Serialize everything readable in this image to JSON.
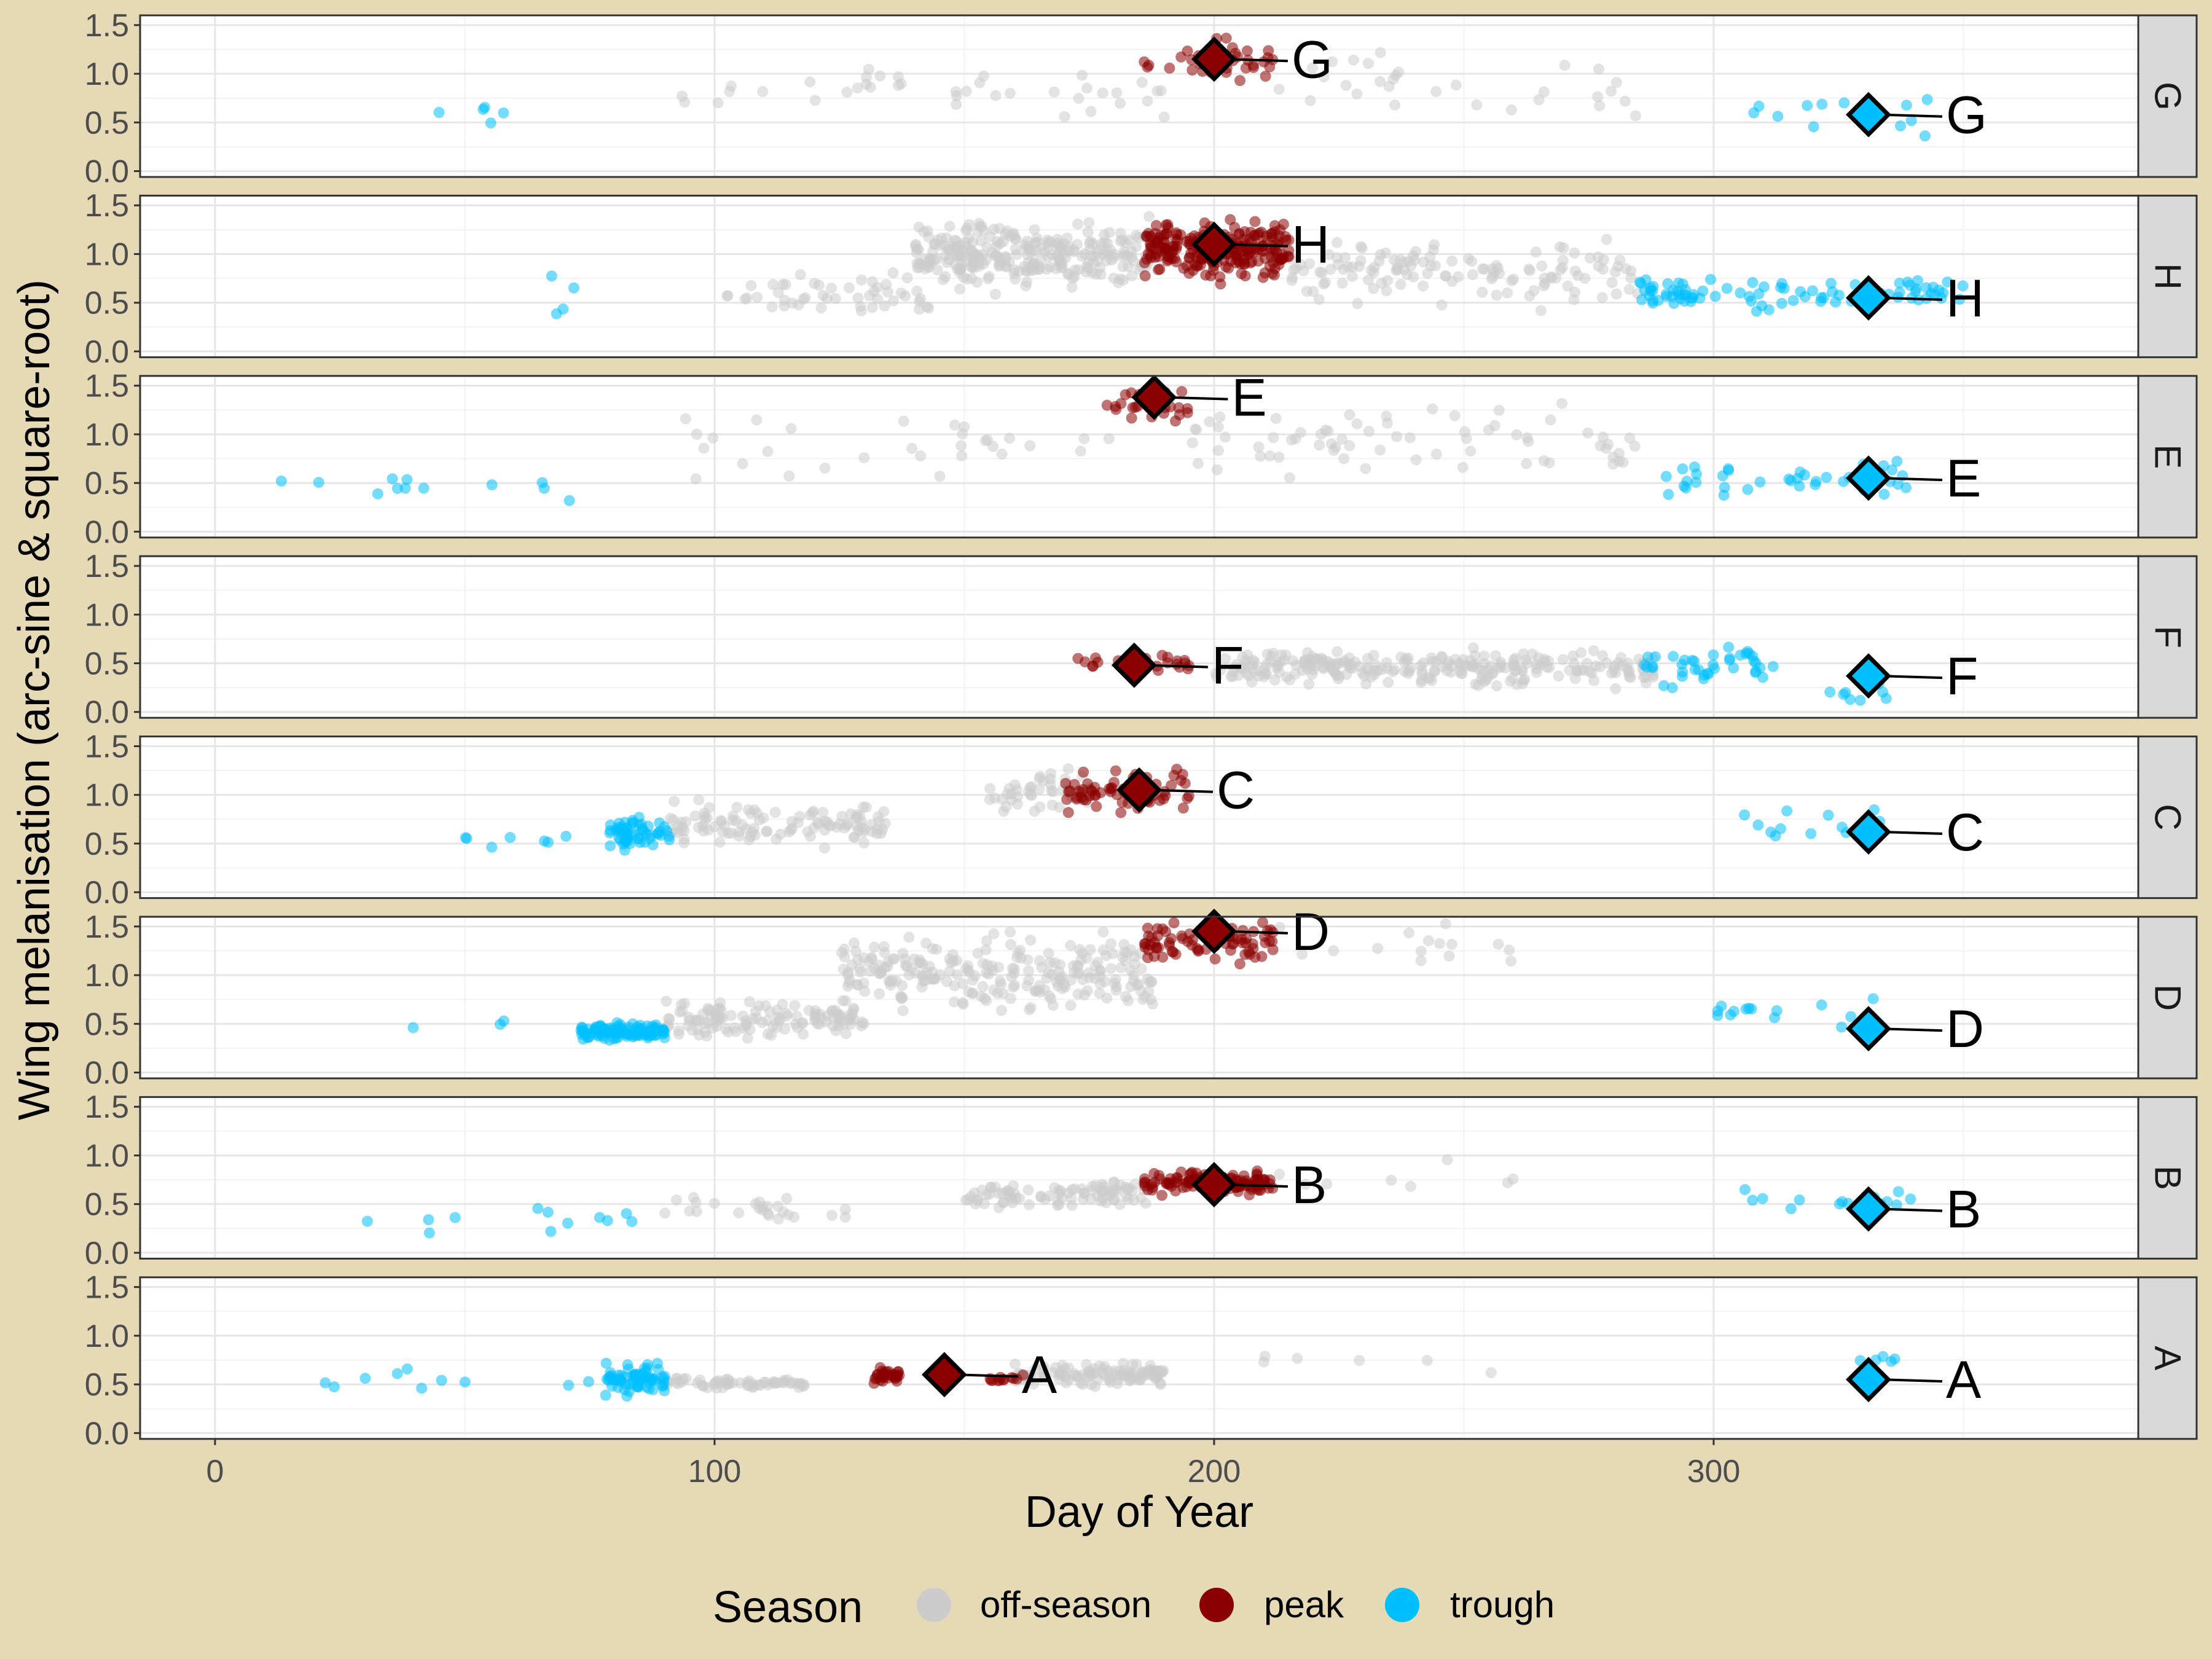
{
  "chart_data": {
    "type": "scatter",
    "title": "",
    "xlabel": "Day of Year",
    "ylabel": "Wing melanisation (arc-sine & square-root)",
    "xlim": [
      -15,
      385
    ],
    "ylim": [
      -0.06,
      1.6
    ],
    "x_ticks": [
      0,
      100,
      200,
      300
    ],
    "y_ticks": [
      0.0,
      0.5,
      1.0,
      1.5
    ],
    "y_tick_labels": [
      "0.0",
      "0.5",
      "1.0",
      "1.5"
    ],
    "legend": {
      "title": "Season",
      "position": "bottom",
      "entries": [
        {
          "label": "off-season",
          "color": "#CCCCCC"
        },
        {
          "label": "peak",
          "color": "#8B0000"
        },
        {
          "label": "trough",
          "color": "#00BFFF"
        }
      ]
    },
    "panels": [
      {
        "site": "G",
        "peak_marker": {
          "day": 200,
          "value": 1.15
        },
        "trough_marker": {
          "day": 331,
          "value": 0.58
        },
        "clusters": [
          {
            "season": "trough",
            "range": [
              35,
              90
            ],
            "level": 0.6,
            "spread": 0.25,
            "n": 5
          },
          {
            "season": "off-season",
            "range": [
              92,
              190
            ],
            "level": 0.8,
            "spread": 0.45,
            "n": 40
          },
          {
            "season": "peak",
            "range": [
              186,
              212
            ],
            "level": 1.15,
            "spread": 0.3,
            "n": 40
          },
          {
            "season": "off-season",
            "range": [
              212,
              290
            ],
            "level": 0.9,
            "spread": 0.45,
            "n": 30
          },
          {
            "season": "trough",
            "range": [
              300,
              345
            ],
            "level": 0.55,
            "spread": 0.35,
            "n": 12
          }
        ]
      },
      {
        "site": "H",
        "peak_marker": {
          "day": 200,
          "value": 1.1
        },
        "trough_marker": {
          "day": 331,
          "value": 0.55
        },
        "clusters": [
          {
            "season": "trough",
            "range": [
              65,
              75
            ],
            "level": 0.6,
            "spread": 0.4,
            "n": 4
          },
          {
            "season": "off-season",
            "range": [
              100,
              145
            ],
            "level": 0.55,
            "spread": 0.3,
            "n": 50
          },
          {
            "season": "off-season",
            "range": [
              140,
              187
            ],
            "level": 1.0,
            "spread": 0.45,
            "n": 280
          },
          {
            "season": "peak",
            "range": [
              186,
              215
            ],
            "level": 1.05,
            "spread": 0.4,
            "n": 230
          },
          {
            "season": "off-season",
            "range": [
              215,
              285
            ],
            "level": 0.8,
            "spread": 0.45,
            "n": 130
          },
          {
            "season": "trough",
            "range": [
              285,
              350
            ],
            "level": 0.6,
            "spread": 0.22,
            "n": 90
          }
        ]
      },
      {
        "site": "E",
        "peak_marker": {
          "day": 188,
          "value": 1.38
        },
        "trough_marker": {
          "day": 331,
          "value": 0.55
        },
        "clusters": [
          {
            "season": "trough",
            "range": [
              10,
              90
            ],
            "level": 0.45,
            "spread": 0.25,
            "n": 12
          },
          {
            "season": "off-season",
            "range": [
              90,
              180
            ],
            "level": 0.9,
            "spread": 0.5,
            "n": 30
          },
          {
            "season": "peak",
            "range": [
              178,
              195
            ],
            "level": 1.3,
            "spread": 0.25,
            "n": 25
          },
          {
            "season": "off-season",
            "range": [
              195,
              285
            ],
            "level": 0.9,
            "spread": 0.5,
            "n": 70
          },
          {
            "season": "trough",
            "range": [
              290,
              340
            ],
            "level": 0.55,
            "spread": 0.25,
            "n": 40
          }
        ]
      },
      {
        "site": "F",
        "peak_marker": {
          "day": 184,
          "value": 0.48
        },
        "trough_marker": {
          "day": 331,
          "value": 0.37
        },
        "clusters": [
          {
            "season": "peak",
            "range": [
              170,
              198
            ],
            "level": 0.5,
            "spread": 0.1,
            "n": 22
          },
          {
            "season": "off-season",
            "range": [
              200,
              288
            ],
            "level": 0.45,
            "spread": 0.25,
            "n": 260
          },
          {
            "season": "trough",
            "range": [
              286,
              312
            ],
            "level": 0.5,
            "spread": 0.3,
            "n": 40
          },
          {
            "season": "trough",
            "range": [
              320,
              335
            ],
            "level": 0.2,
            "spread": 0.15,
            "n": 8
          }
        ]
      },
      {
        "site": "C",
        "peak_marker": {
          "day": 185,
          "value": 1.05
        },
        "trough_marker": {
          "day": 331,
          "value": 0.62
        },
        "clusters": [
          {
            "season": "trough",
            "range": [
              50,
              80
            ],
            "level": 0.55,
            "spread": 0.1,
            "n": 7
          },
          {
            "season": "trough",
            "range": [
              79,
              91
            ],
            "level": 0.6,
            "spread": 0.2,
            "n": 60
          },
          {
            "season": "off-season",
            "range": [
              91,
              135
            ],
            "level": 0.7,
            "spread": 0.3,
            "n": 110
          },
          {
            "season": "off-season",
            "range": [
              155,
              175
            ],
            "level": 1.0,
            "spread": 0.3,
            "n": 40
          },
          {
            "season": "peak",
            "range": [
              170,
              195
            ],
            "level": 1.05,
            "spread": 0.3,
            "n": 70
          },
          {
            "season": "trough",
            "range": [
              305,
              335
            ],
            "level": 0.7,
            "spread": 0.3,
            "n": 14
          }
        ]
      },
      {
        "site": "D",
        "peak_marker": {
          "day": 200,
          "value": 1.45
        },
        "trough_marker": {
          "day": 331,
          "value": 0.45
        },
        "clusters": [
          {
            "season": "trough",
            "range": [
              20,
              72
            ],
            "level": 0.48,
            "spread": 0.06,
            "n": 3
          },
          {
            "season": "trough",
            "range": [
              73,
              90
            ],
            "level": 0.42,
            "spread": 0.12,
            "n": 120
          },
          {
            "season": "off-season",
            "range": [
              90,
              130
            ],
            "level": 0.55,
            "spread": 0.25,
            "n": 120
          },
          {
            "season": "off-season",
            "range": [
              125,
              188
            ],
            "level": 1.0,
            "spread": 0.5,
            "n": 240
          },
          {
            "season": "peak",
            "range": [
              186,
              212
            ],
            "level": 1.35,
            "spread": 0.3,
            "n": 80
          },
          {
            "season": "off-season",
            "range": [
              212,
              265
            ],
            "level": 1.3,
            "spread": 0.3,
            "n": 15
          },
          {
            "season": "trough",
            "range": [
              300,
              335
            ],
            "level": 0.6,
            "spread": 0.2,
            "n": 14
          }
        ]
      },
      {
        "site": "B",
        "peak_marker": {
          "day": 200,
          "value": 0.7
        },
        "trough_marker": {
          "day": 331,
          "value": 0.45
        },
        "clusters": [
          {
            "season": "trough",
            "range": [
              10,
              85
            ],
            "level": 0.35,
            "spread": 0.18,
            "n": 12
          },
          {
            "season": "off-season",
            "range": [
              90,
              130
            ],
            "level": 0.45,
            "spread": 0.15,
            "n": 25
          },
          {
            "season": "off-season",
            "range": [
              150,
              187
            ],
            "level": 0.6,
            "spread": 0.2,
            "n": 90
          },
          {
            "season": "peak",
            "range": [
              186,
              212
            ],
            "level": 0.72,
            "spread": 0.15,
            "n": 120
          },
          {
            "season": "off-season",
            "range": [
              212,
              275
            ],
            "level": 0.75,
            "spread": 0.25,
            "n": 8
          },
          {
            "season": "trough",
            "range": [
              305,
              340
            ],
            "level": 0.55,
            "spread": 0.15,
            "n": 14
          }
        ]
      },
      {
        "site": "A",
        "peak_marker": {
          "day": 146,
          "value": 0.6
        },
        "trough_marker": {
          "day": 331,
          "value": 0.55
        },
        "clusters": [
          {
            "season": "trough",
            "range": [
              18,
              78
            ],
            "level": 0.55,
            "spread": 0.2,
            "n": 10
          },
          {
            "season": "trough",
            "range": [
              78,
              90
            ],
            "level": 0.55,
            "spread": 0.2,
            "n": 70
          },
          {
            "season": "off-season",
            "range": [
              90,
              118
            ],
            "level": 0.52,
            "spread": 0.08,
            "n": 60
          },
          {
            "season": "peak",
            "range": [
              131,
              137
            ],
            "level": 0.6,
            "spread": 0.1,
            "n": 30
          },
          {
            "season": "peak",
            "range": [
              155,
              162
            ],
            "level": 0.57,
            "spread": 0.06,
            "n": 12
          },
          {
            "season": "off-season",
            "range": [
              160,
              190
            ],
            "level": 0.6,
            "spread": 0.15,
            "n": 110
          },
          {
            "season": "off-season",
            "range": [
              190,
              275
            ],
            "level": 0.7,
            "spread": 0.2,
            "n": 6
          },
          {
            "season": "trough",
            "range": [
              328,
              338
            ],
            "level": 0.75,
            "spread": 0.05,
            "n": 5
          }
        ]
      }
    ]
  }
}
